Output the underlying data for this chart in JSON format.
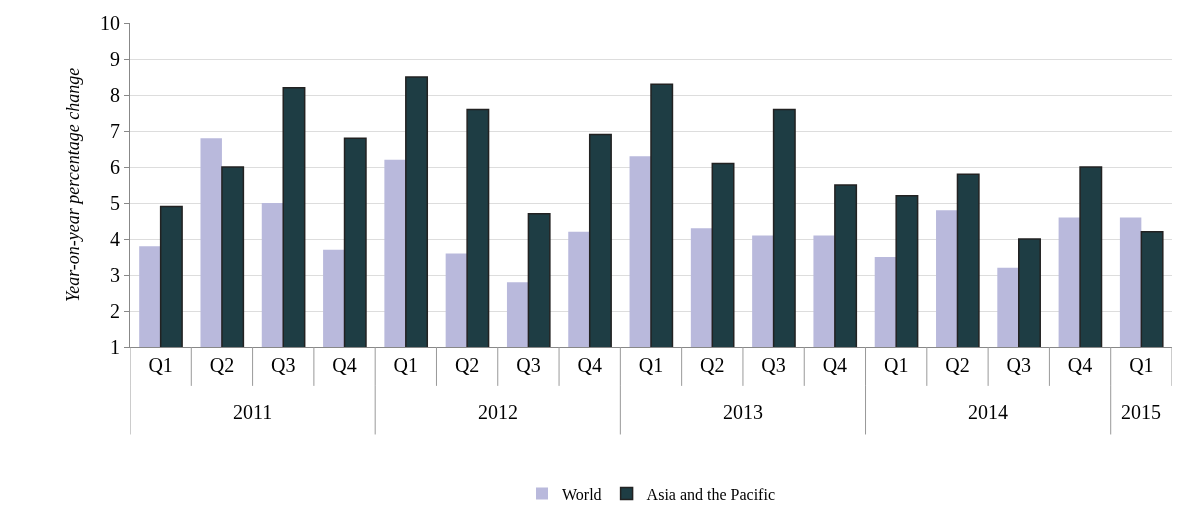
{
  "chart_data": {
    "type": "bar",
    "ylabel": "Year-on-year percentage change",
    "categories": [
      "Q1",
      "Q2",
      "Q3",
      "Q4",
      "Q1",
      "Q2",
      "Q3",
      "Q4",
      "Q1",
      "Q2",
      "Q3",
      "Q4",
      "Q1",
      "Q2",
      "Q3",
      "Q4",
      "Q1"
    ],
    "series": [
      {
        "name": "World",
        "color": "#b9b9dc",
        "values": [
          3.8,
          6.8,
          5.0,
          3.7,
          6.2,
          3.6,
          2.8,
          4.2,
          6.3,
          4.3,
          4.1,
          4.1,
          3.5,
          4.8,
          3.2,
          4.6,
          4.6
        ]
      },
      {
        "name": "Asia and the Pacific",
        "color": "#1e3d44",
        "values": [
          4.9,
          6.0,
          8.2,
          6.8,
          8.5,
          7.6,
          4.7,
          6.9,
          8.3,
          6.1,
          7.6,
          5.5,
          5.2,
          5.8,
          4.0,
          6.0,
          4.2
        ]
      }
    ],
    "annotations": [
      "2011",
      "2012",
      "2013",
      "2014",
      "2015"
    ],
    "ylim": [
      1,
      10
    ],
    "yticks": [
      1,
      2,
      3,
      4,
      5,
      6,
      7,
      8,
      9,
      10
    ],
    "grid": "y",
    "legend": "bottom"
  }
}
